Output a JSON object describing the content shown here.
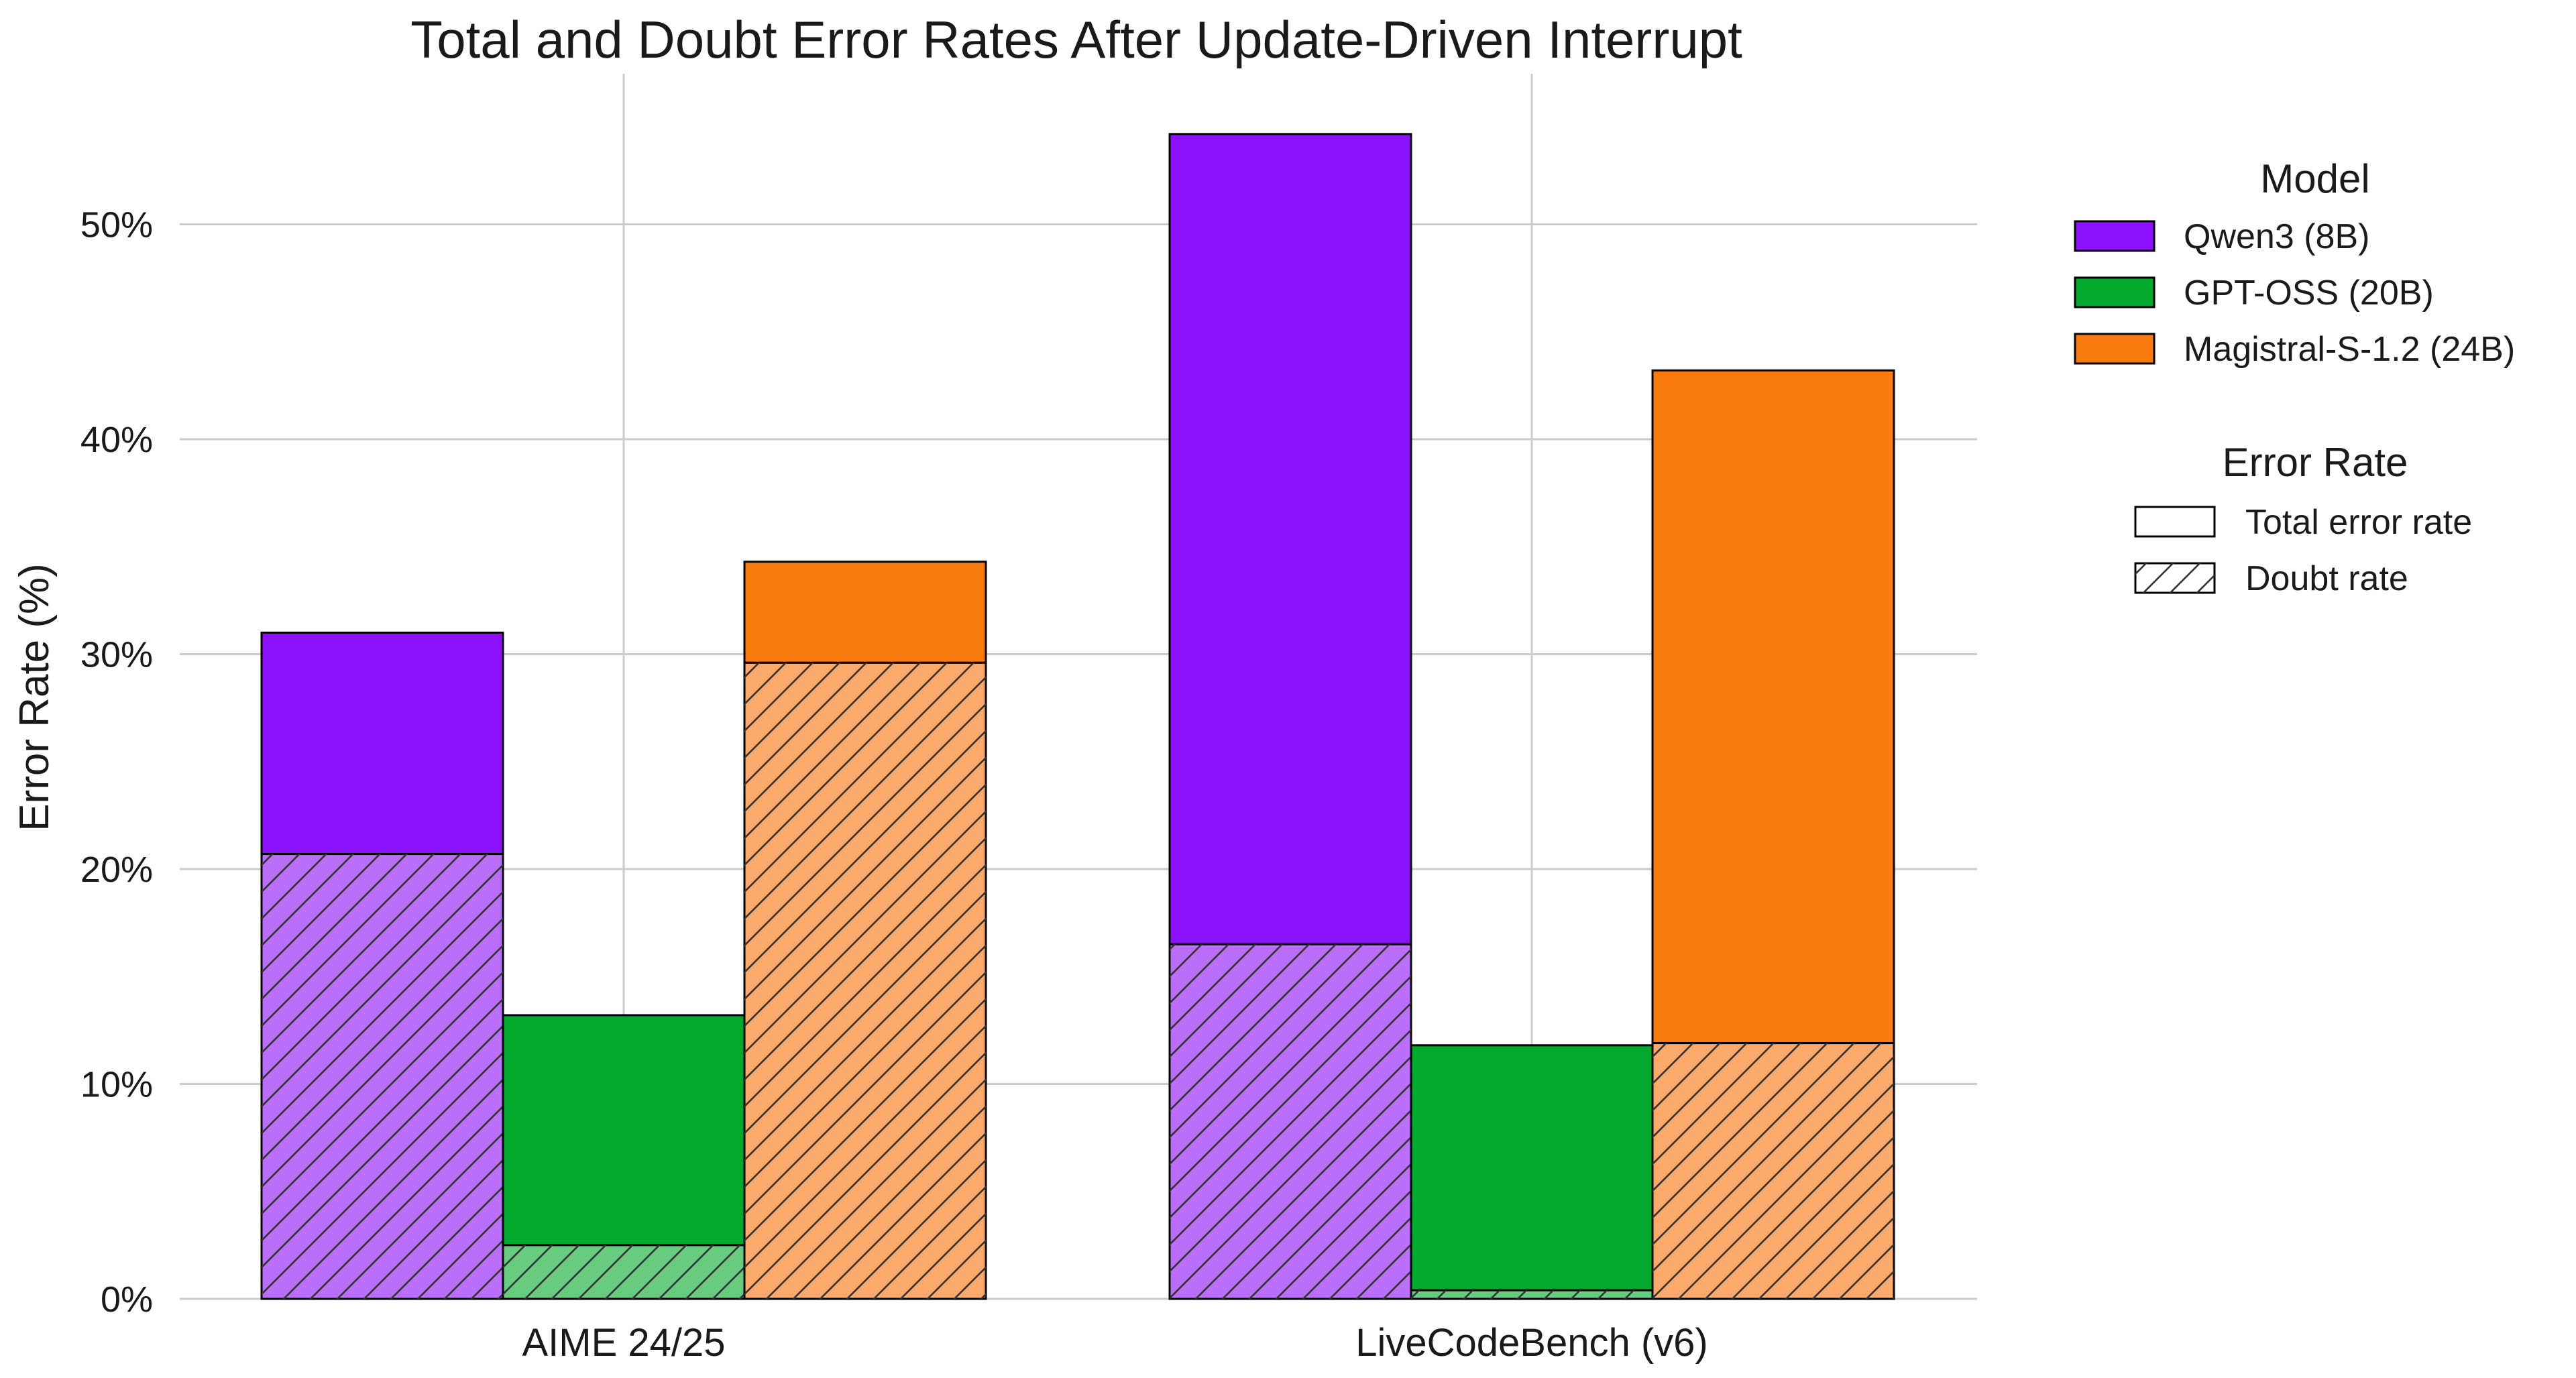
{
  "chart_data": {
    "type": "bar",
    "title": "Total and Doubt Error Rates After Update-Driven Interrupt",
    "xlabel": "",
    "ylabel": "Error Rate (%)",
    "ylim": [
      0,
      57
    ],
    "yticks": [
      0,
      10,
      20,
      30,
      40,
      50
    ],
    "ytick_labels": [
      "0%",
      "10%",
      "20%",
      "30%",
      "40%",
      "50%"
    ],
    "grid": true,
    "categories": [
      "AIME 24/25",
      "LiveCodeBench (v6)"
    ],
    "series": [
      {
        "name": "Qwen3 (8B)",
        "color": "#8b10fc",
        "light_color": "#bb6efa",
        "total": [
          31.0,
          54.2
        ],
        "doubt": [
          20.7,
          16.5
        ]
      },
      {
        "name": "GPT-OSS (20B)",
        "color": "#01a92c",
        "light_color": "#67cb80",
        "total": [
          13.2,
          11.8
        ],
        "doubt": [
          2.5,
          0.4
        ]
      },
      {
        "name": "Magistral-S-1.2 (24B)",
        "color": "#f97a0f",
        "light_color": "#fbaa6b",
        "total": [
          34.3,
          43.2
        ],
        "doubt": [
          29.6,
          11.9
        ]
      }
    ],
    "legend": {
      "placement": "right",
      "model_title": "Model",
      "rate_title": "Error Rate",
      "rate_items": [
        "Total error rate",
        "Doubt rate"
      ]
    }
  }
}
